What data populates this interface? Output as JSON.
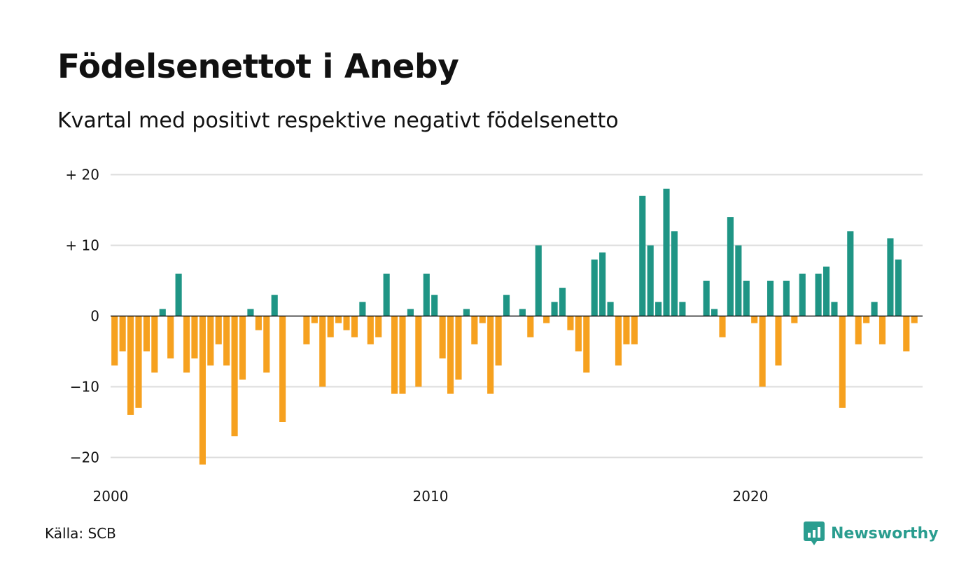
{
  "title": "Födelsenettot i Aneby",
  "subtitle": "Kvartal med positivt respektive negativt födelsenetto",
  "source": "Källa: SCB",
  "brand": {
    "name": "Newsworthy",
    "icon": "newsworthy-logo-icon"
  },
  "colors": {
    "positive": "#1f9585",
    "negative": "#f6a11f",
    "grid": "#dddddd",
    "zero_line": "#111111",
    "brand": "#2a9d8f"
  },
  "chart_data": {
    "type": "bar",
    "title": "Födelsenettot i Aneby",
    "subtitle": "Kvartal med positivt respektive negativt födelsenetto",
    "xlabel": "",
    "ylabel": "",
    "x_start": 2000,
    "periods_per_year": 4,
    "x_ticks": [
      2000,
      2010,
      2020
    ],
    "x_tick_labels": [
      "2000",
      "2010",
      "2020"
    ],
    "y_ticks": [
      20,
      10,
      0,
      -10,
      -20
    ],
    "y_tick_labels": [
      "+ 20",
      "+ 10",
      "0",
      "−10",
      "−20"
    ],
    "ylim": [
      -22,
      20
    ],
    "grid": true,
    "legend": "none",
    "values": [
      -7,
      -5,
      -14,
      -13,
      -5,
      -8,
      1,
      -6,
      6,
      -8,
      -6,
      -21,
      -7,
      -4,
      -7,
      -17,
      -9,
      1,
      -2,
      -8,
      3,
      -15,
      0,
      0,
      -4,
      -1,
      -10,
      -3,
      -1,
      -2,
      -3,
      2,
      -4,
      -3,
      6,
      -11,
      -11,
      1,
      -10,
      6,
      3,
      -6,
      -11,
      -9,
      1,
      -4,
      -1,
      -11,
      -7,
      3,
      0,
      1,
      -3,
      10,
      -1,
      2,
      4,
      -2,
      -5,
      -8,
      8,
      9,
      2,
      -7,
      -4,
      -4,
      17,
      10,
      2,
      18,
      12,
      2,
      0,
      0,
      5,
      1,
      -3,
      14,
      10,
      5,
      -1,
      -10,
      5,
      -7,
      5,
      -1,
      6,
      0,
      6,
      7,
      2,
      -13,
      12,
      -4,
      -1,
      2,
      -4,
      11,
      8,
      -5,
      -1
    ]
  }
}
